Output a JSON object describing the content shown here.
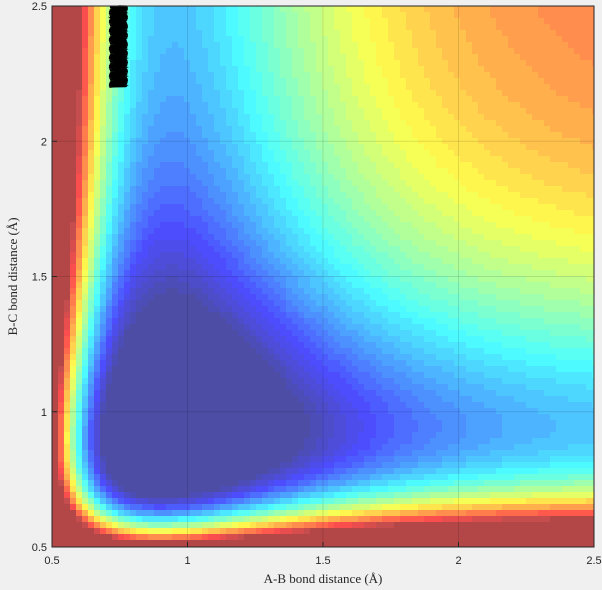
{
  "chart_data": {
    "type": "contour",
    "title": "",
    "xlabel": "A-B bond distance (Å)",
    "ylabel": "B-C bond distance (Å)",
    "xlim": [
      0.5,
      2.5
    ],
    "ylim": [
      0.5,
      2.5
    ],
    "xticks": [
      "0.5",
      "1",
      "1.5",
      "2",
      "2.5"
    ],
    "yticks": [
      "0.5",
      "1",
      "1.5",
      "2",
      "2.5"
    ],
    "grid": true,
    "colormap": "jet",
    "surface": "symmetric LEPS-like potential energy surface, minimum valley near B-C = 0.95 Å and A-B = 0.95 Å, plateau (highest energy) toward large A-B and B-C",
    "trajectory": {
      "description": "black oscillating path near A-B ≈ 0.75 Å, B-C from 2.2 to 2.5 Å",
      "x_range": [
        0.71,
        0.78
      ],
      "y_range": [
        2.2,
        2.5
      ]
    }
  }
}
